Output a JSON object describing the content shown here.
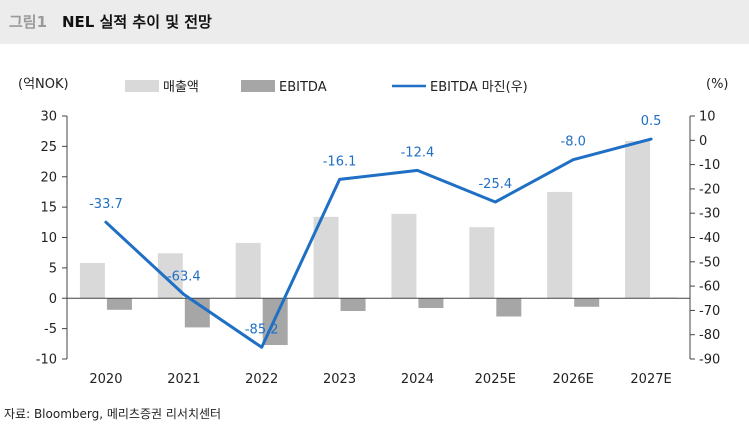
{
  "header": {
    "figure_label": "그림1",
    "title": "NEL 실적 추이 및 전망"
  },
  "chart_data": {
    "type": "bar",
    "categories": [
      "2020",
      "2021",
      "2022",
      "2023",
      "2024",
      "2025E",
      "2026E",
      "2027E"
    ],
    "series": [
      {
        "name": "매출액",
        "kind": "bar",
        "axis": "left",
        "color": "#d9d9d9",
        "values": [
          5.8,
          7.4,
          9.1,
          13.4,
          13.9,
          11.7,
          17.5,
          25.9
        ]
      },
      {
        "name": "EBITDA",
        "kind": "bar",
        "axis": "left",
        "color": "#a6a6a6",
        "values": [
          -1.9,
          -4.8,
          -7.7,
          -2.1,
          -1.6,
          -3.0,
          -1.4,
          0.1
        ]
      },
      {
        "name": "EBITDA 마진(우)",
        "kind": "line",
        "axis": "right",
        "color": "#1f6fc5",
        "values": [
          -33.7,
          -63.4,
          -85.2,
          -16.1,
          -12.4,
          -25.4,
          -8.0,
          0.5
        ]
      }
    ],
    "data_labels": [
      "-33.7",
      "-63.4",
      "-85.2",
      "-16.1",
      "-12.4",
      "-25.4",
      "-8.0",
      "0.5"
    ],
    "y_left": {
      "unit_label": "(억NOK)",
      "min": -10,
      "max": 30,
      "ticks": [
        -10,
        -5,
        0,
        5,
        10,
        15,
        20,
        25,
        30
      ]
    },
    "y_right": {
      "unit_label": "(%)",
      "min": -90,
      "max": 10,
      "ticks": [
        -90,
        -80,
        -70,
        -60,
        -50,
        -40,
        -30,
        -20,
        -10,
        0,
        10
      ]
    },
    "legend_position": "top",
    "grid": false
  },
  "footer": {
    "source": "자료: Bloomberg, 메리츠증권 리서치센터"
  }
}
